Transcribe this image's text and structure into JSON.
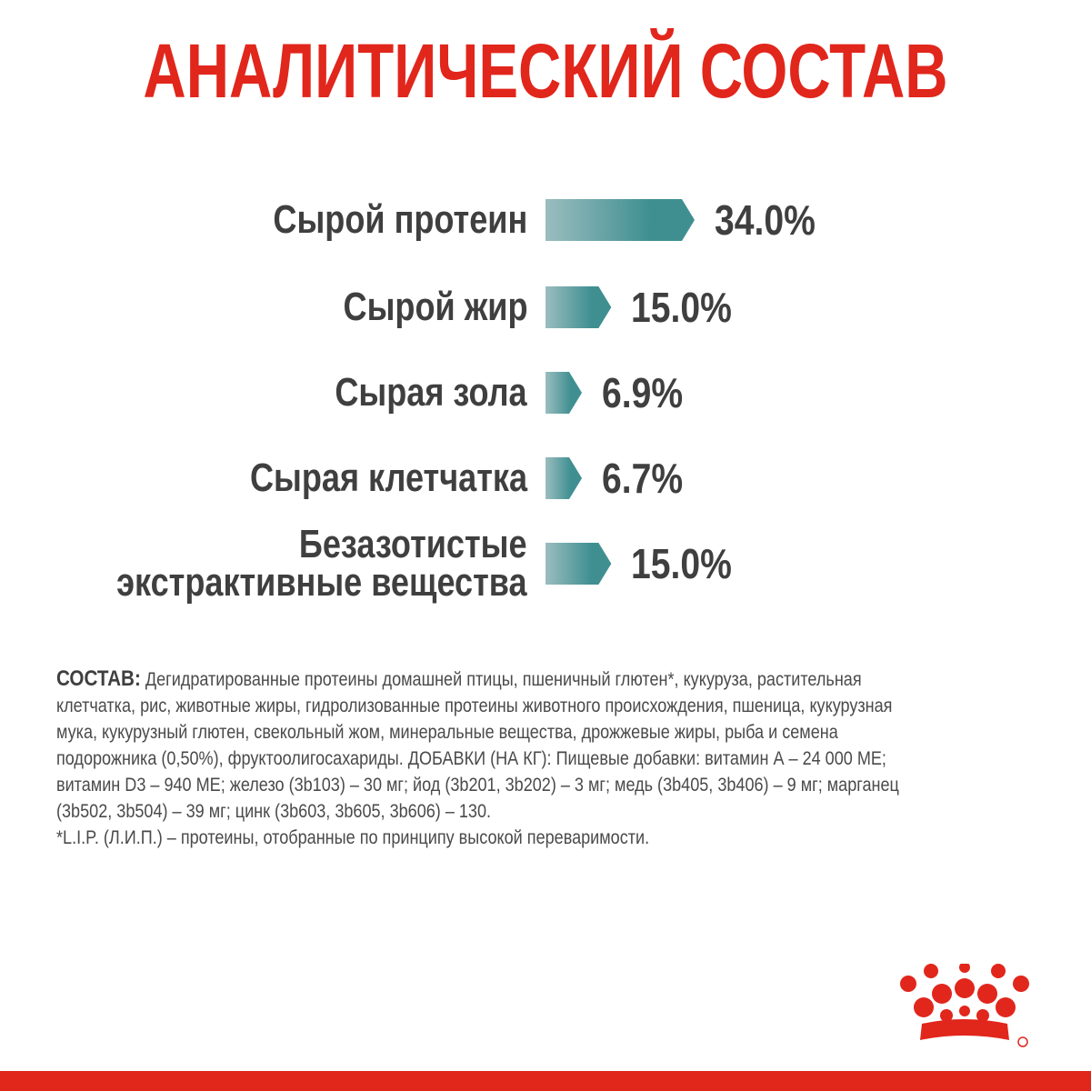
{
  "title": "АНАЛИТИЧЕСКИЙ СОСТАВ",
  "chart_data": {
    "type": "bar",
    "orientation": "horizontal",
    "categories": [
      "Сырой протеин",
      "Сырой жир",
      "Сырая зола",
      "Сырая клетчатка",
      "Безазотистые экстрактивные вещества"
    ],
    "category_lines": [
      [
        "Сырой протеин"
      ],
      [
        "Сырой жир"
      ],
      [
        "Сырая зола"
      ],
      [
        "Сырая клетчатка"
      ],
      [
        "Безазотистые",
        "экстрактивные вещества"
      ]
    ],
    "values": [
      34.0,
      15.0,
      6.9,
      6.7,
      15.0
    ],
    "value_labels": [
      "34.0%",
      "15.0%",
      "6.9%",
      "6.7%",
      "15.0%"
    ],
    "unit": "%",
    "bar_color_start": "#9bbdbf",
    "bar_color_end": "#3f8f91",
    "legend": "none",
    "grid": false
  },
  "composition": {
    "lead": "СОСТАВ:",
    "text": " Дегидратированные протеины домашней птицы, пшеничный глютен*, кукуруза, растительная клетчатка, рис, животные жиры, гидролизованные протеины животного происхождения, пшеница, кукурузная мука, кукурузный глютен, свекольный жом, минеральные вещества, дрожжевые жиры, рыба и семена подорожника (0,50%), фруктоолигосахариды. ДОБАВКИ (НА КГ): Пищевые добавки: витамин А – 24 000 МЕ; витамин D3 – 940 МЕ; железо (3b103) – 30 мг; йод (3b201, 3b202) – 3 мг; медь (3b405, 3b406) – 9 мг; марганец (3b502, 3b504) – 39 мг; цинк (3b603, 3b605, 3b606) – 130.",
    "footnote": "*L.I.P. (Л.И.П.) – протеины, отобранные по принципу высокой переваримости."
  },
  "brand": {
    "logo_icon": "crown-icon",
    "accent_color": "#e1261c"
  }
}
